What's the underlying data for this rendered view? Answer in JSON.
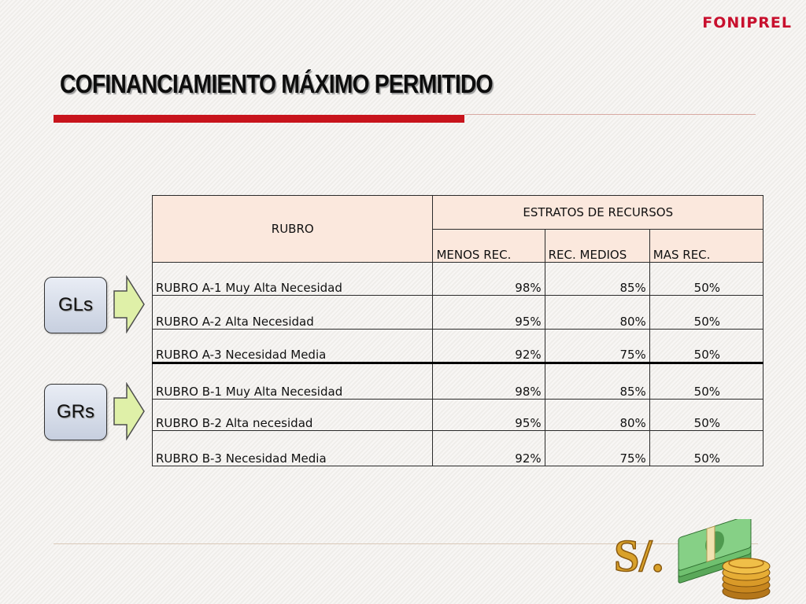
{
  "logo": "FONIPREL",
  "title": "COFINANCIAMIENTO MÁXIMO PERMITIDO",
  "table": {
    "header_rubro": "RUBRO",
    "header_estratos": "ESTRATOS DE RECURSOS",
    "subheaders": [
      "MENOS REC.",
      "REC. MEDIOS",
      "MAS REC."
    ],
    "rows": [
      {
        "name": "RUBRO A-1 Muy Alta Necesidad",
        "menos": "98%",
        "medios": "85%",
        "mas": "50%"
      },
      {
        "name": "RUBRO A-2 Alta Necesidad",
        "menos": "95%",
        "medios": "80%",
        "mas": "50%"
      },
      {
        "name": "RUBRO A-3 Necesidad Media",
        "menos": "92%",
        "medios": "75%",
        "mas": "50%"
      },
      {
        "name": "RUBRO B-1 Muy Alta Necesidad",
        "menos": "98%",
        "medios": "85%",
        "mas": "50%"
      },
      {
        "name": "RUBRO B-2 Alta necesidad",
        "menos": "95%",
        "medios": "80%",
        "mas": "50%"
      },
      {
        "name": "RUBRO B-3 Necesidad Media",
        "menos": "92%",
        "medios": "75%",
        "mas": "50%"
      }
    ]
  },
  "groups": {
    "gls": "GLs",
    "grs": "GRs"
  },
  "illustration": {
    "currency_symbol": "S/."
  },
  "colors": {
    "accent": "#c8141c",
    "header_fill": "#fbe8dd",
    "arrow_fill": "#dff0a8",
    "box_fill": "#d3dae8"
  }
}
